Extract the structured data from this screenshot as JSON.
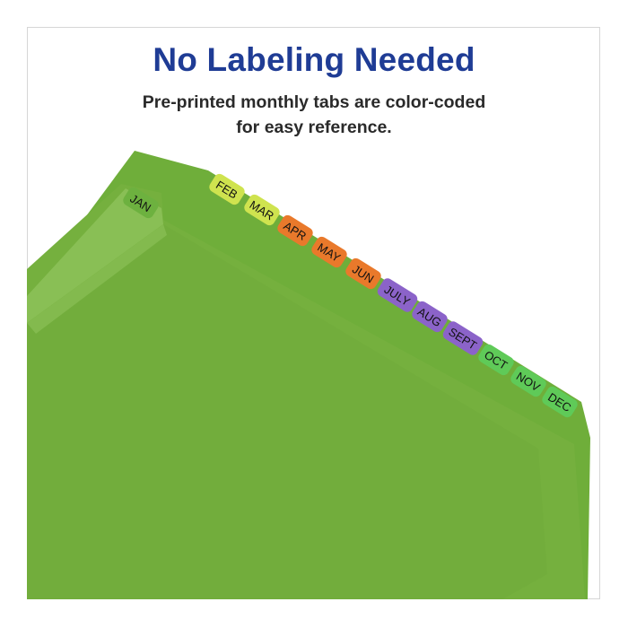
{
  "headline": "No Labeling Needed",
  "subheadline": {
    "line1": "Pre-printed monthly tabs are color-coded",
    "line2": "for easy reference."
  },
  "tabs": [
    {
      "label": "JAN",
      "color": "#6db13f"
    },
    {
      "label": "FEB",
      "color": "#cfe34f"
    },
    {
      "label": "MAR",
      "color": "#cfe34f"
    },
    {
      "label": "APR",
      "color": "#e9792b"
    },
    {
      "label": "MAY",
      "color": "#e9792b"
    },
    {
      "label": "JUN",
      "color": "#e9792b"
    },
    {
      "label": "JULY",
      "color": "#8b63c9"
    },
    {
      "label": "AUG",
      "color": "#8b63c9"
    },
    {
      "label": "SEPT",
      "color": "#8b63c9"
    },
    {
      "label": "OCT",
      "color": "#5fca58"
    },
    {
      "label": "NOV",
      "color": "#5fca58"
    },
    {
      "label": "DEC",
      "color": "#5fca58"
    }
  ],
  "colors": {
    "folder": "#72ad3c",
    "folder_light": "#86bd50",
    "headline": "#1f3c95"
  }
}
